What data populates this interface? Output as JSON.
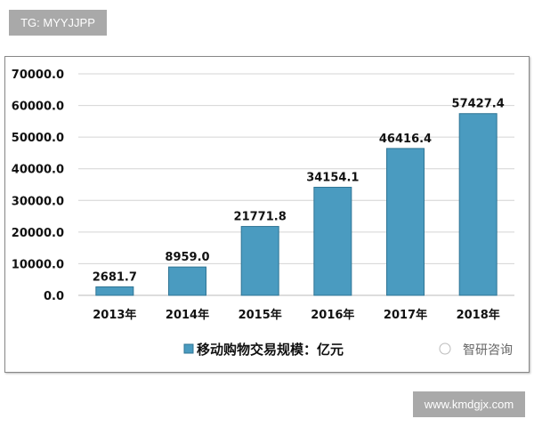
{
  "watermark_top": "TG: MYYJJPP",
  "watermark_bottom": "www.kmdgjx.com",
  "source_logo": "智研咨询",
  "chart_data": {
    "type": "bar",
    "categories": [
      "2013年",
      "2014年",
      "2015年",
      "2016年",
      "2017年",
      "2018年"
    ],
    "series": [
      {
        "name": "移动购物交易规模：亿元",
        "values": [
          2681.7,
          8959.0,
          21771.8,
          34154.1,
          46416.4,
          57427.4
        ],
        "color": "#4a9bc0"
      }
    ],
    "data_labels": [
      "2681.7",
      "8959.0",
      "21771.8",
      "34154.1",
      "46416.4",
      "57427.4"
    ],
    "yticks": [
      "0.0",
      "10000.0",
      "20000.0",
      "30000.0",
      "40000.0",
      "50000.0",
      "60000.0",
      "70000.0"
    ],
    "ylim": [
      0,
      70000
    ],
    "grid": true,
    "legend": "bottom",
    "title": "",
    "xlabel": "",
    "ylabel": ""
  }
}
